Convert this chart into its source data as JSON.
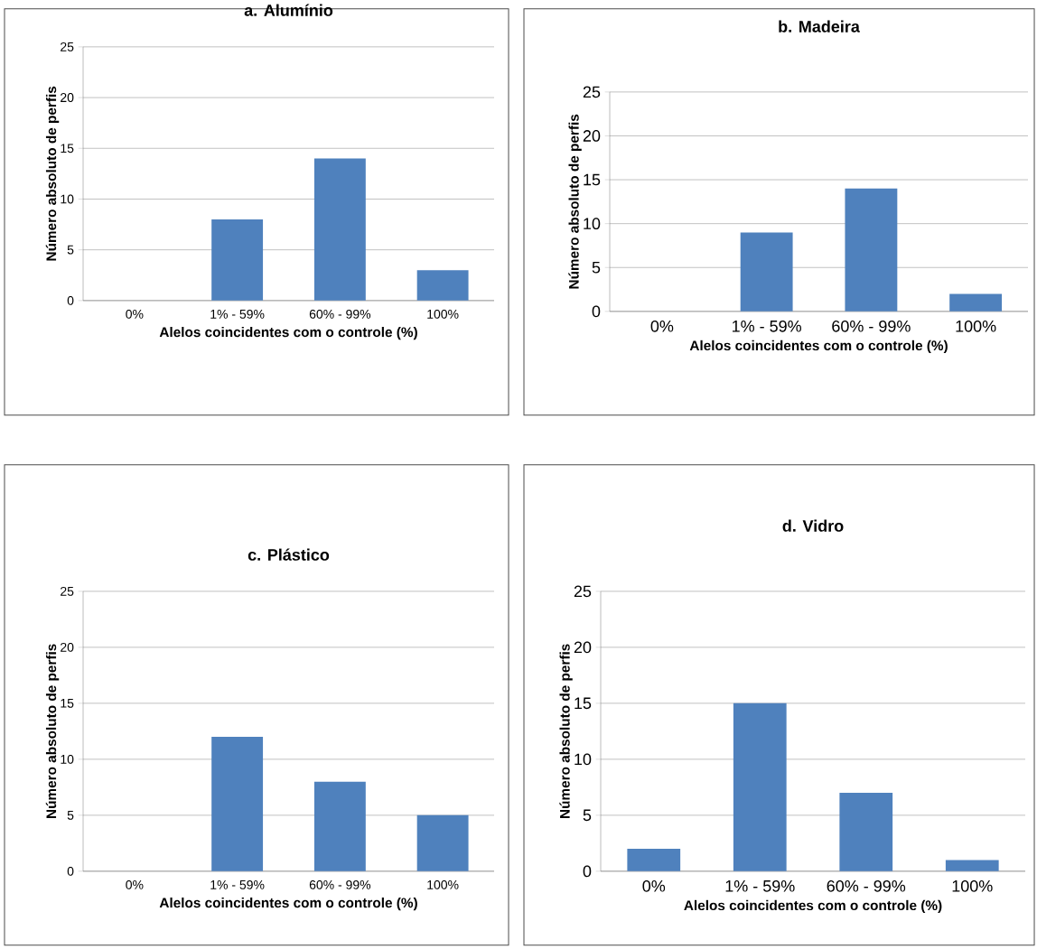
{
  "chart_data": [
    {
      "type": "bar",
      "title": "a. Alumínio",
      "xlabel": "Alelos coincidentes com o controle (%)",
      "ylabel": "Número absoluto de perfis",
      "categories": [
        "0%",
        "1% - 59%",
        "60% - 99%",
        "100%"
      ],
      "values": [
        0,
        8,
        14,
        3
      ],
      "color": "#4f81bd",
      "ylim": [
        0,
        25
      ],
      "yticks": [
        0,
        5,
        10,
        15,
        20,
        25
      ],
      "grid": "y"
    },
    {
      "type": "bar",
      "title": "b. Madeira",
      "xlabel": "Alelos coincidentes com o controle (%)",
      "ylabel": "Número absoluto de perfis",
      "categories": [
        "0%",
        "1% - 59%",
        "60% - 99%",
        "100%"
      ],
      "values": [
        0,
        9,
        14,
        2
      ],
      "color": "#4f81bd",
      "ylim": [
        0,
        25
      ],
      "yticks": [
        0,
        5,
        10,
        15,
        20,
        25
      ],
      "grid": "y"
    },
    {
      "type": "bar",
      "title": "c. Plástico",
      "xlabel": "Alelos coincidentes com o controle (%)",
      "ylabel": "Número absoluto de perfis",
      "categories": [
        "0%",
        "1% - 59%",
        "60% - 99%",
        "100%"
      ],
      "values": [
        0,
        12,
        8,
        5
      ],
      "color": "#4f81bd",
      "ylim": [
        0,
        25
      ],
      "yticks": [
        0,
        5,
        10,
        15,
        20,
        25
      ],
      "grid": "y"
    },
    {
      "type": "bar",
      "title": "d. Vidro",
      "xlabel": "Alelos coincidentes com o controle (%)",
      "ylabel": "Número absoluto de perfis",
      "categories": [
        "0%",
        "1% - 59%",
        "60% - 99%",
        "100%"
      ],
      "values": [
        2,
        15,
        7,
        1
      ],
      "color": "#4f81bd",
      "ylim": [
        0,
        25
      ],
      "yticks": [
        0,
        5,
        10,
        15,
        20,
        25
      ],
      "grid": "y"
    }
  ]
}
